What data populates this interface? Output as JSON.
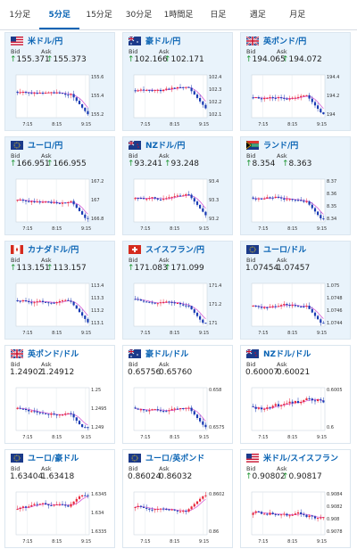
{
  "tabs": [
    "1分足",
    "5分足",
    "15分足",
    "30分足",
    "1時間足",
    "日足",
    "週足",
    "月足"
  ],
  "active_tab": 1,
  "labels": {
    "bid": "Bid",
    "ask": "Ask"
  },
  "cards": [
    {
      "title": "米ドル/円",
      "flag": "us",
      "bid": "155.371",
      "ask": "155.373",
      "up": true,
      "yticks": [
        "155.6",
        "155.4",
        "155.2"
      ],
      "xticks": [
        "7:15",
        "8:15",
        "9:15"
      ],
      "trend": "down"
    },
    {
      "title": "豪ドル/円",
      "flag": "au",
      "bid": "102.166",
      "ask": "102.171",
      "up": true,
      "yticks": [
        "102.4",
        "102.3",
        "102.2",
        "102.1"
      ],
      "xticks": [
        "7:15",
        "8:15",
        "9:15"
      ],
      "trend": "down"
    },
    {
      "title": "英ポンド/円",
      "flag": "gb",
      "bid": "194.065",
      "ask": "194.072",
      "up": true,
      "yticks": [
        "194.4",
        "194.2",
        "194"
      ],
      "xticks": [
        "7:15",
        "8:15",
        "9:15"
      ],
      "trend": "down"
    },
    {
      "title": "ユーロ/円",
      "flag": "eu",
      "bid": "166.951",
      "ask": "166.955",
      "up": true,
      "yticks": [
        "167.2",
        "167",
        "166.8"
      ],
      "xticks": [
        "7:15",
        "8:15",
        "9:15"
      ],
      "trend": "down"
    },
    {
      "title": "NZドル/円",
      "flag": "nz",
      "bid": "93.241",
      "ask": "93.248",
      "up": true,
      "yticks": [
        "93.4",
        "93.3",
        "93.2"
      ],
      "xticks": [
        "7:15",
        "8:15",
        "9:15"
      ],
      "trend": "down"
    },
    {
      "title": "ランド/円",
      "flag": "za",
      "bid": "8.354",
      "ask": "8.363",
      "up": true,
      "yticks": [
        "8.37",
        "8.36",
        "8.35",
        "8.34"
      ],
      "xticks": [
        "7:15",
        "8:15",
        "9:15"
      ],
      "trend": "down"
    },
    {
      "title": "カナダドル/円",
      "flag": "ca",
      "bid": "113.151",
      "ask": "113.157",
      "up": true,
      "yticks": [
        "113.4",
        "113.3",
        "113.2",
        "113.1"
      ],
      "xticks": [
        "7:15",
        "8:15",
        "9:15"
      ],
      "trend": "down"
    },
    {
      "title": "スイスフラン/円",
      "flag": "ch",
      "bid": "171.083",
      "ask": "171.099",
      "up": true,
      "yticks": [
        "171.4",
        "171.2",
        "171"
      ],
      "xticks": [
        "7:15",
        "8:15",
        "9:15"
      ],
      "trend": "down"
    },
    {
      "title": "ユーロ/ドル",
      "flag": "eu",
      "bid": "1.07454",
      "ask": "1.07457",
      "up": false,
      "yticks": [
        "1.075",
        "1.0748",
        "1.0746",
        "1.0744"
      ],
      "xticks": [
        "7:15",
        "8:15",
        "9:15"
      ],
      "trend": "down"
    },
    {
      "title": "英ポンド/ドル",
      "flag": "gb",
      "bid": "1.24902",
      "ask": "1.24912",
      "up": false,
      "yticks": [
        "1.25",
        "1.2495",
        "1.249"
      ],
      "xticks": [
        "7:15",
        "8:15",
        "9:15"
      ],
      "trend": "down"
    },
    {
      "title": "豪ドル/ドル",
      "flag": "au",
      "bid": "0.65756",
      "ask": "0.65760",
      "up": false,
      "yticks": [
        "0.658",
        "0.6575"
      ],
      "xticks": [
        "7:15",
        "8:15",
        "9:15"
      ],
      "trend": "down"
    },
    {
      "title": "NZドル/ドル",
      "flag": "nz",
      "bid": "0.60007",
      "ask": "0.60021",
      "up": false,
      "yticks": [
        "0.6005",
        "0.6"
      ],
      "xticks": [
        "7:15",
        "8:15",
        "9:15"
      ],
      "trend": "flat"
    },
    {
      "title": "ユーロ/豪ドル",
      "flag": "eu",
      "bid": "1.63404",
      "ask": "1.63418",
      "up": false,
      "yticks": [
        "1.6345",
        "1.634",
        "1.6335"
      ],
      "xticks": [
        "7:15",
        "8:15",
        "9:15"
      ],
      "trend": "up"
    },
    {
      "title": "ユーロ/英ポンド",
      "flag": "eu",
      "bid": "0.86024",
      "ask": "0.86032",
      "up": false,
      "yticks": [
        "0.8602",
        "0.86"
      ],
      "xticks": [
        "7:15",
        "8:15",
        "9:15"
      ],
      "trend": "up"
    },
    {
      "title": "米ドル/スイスフラン",
      "flag": "us",
      "bid": "0.90802",
      "ask": "0.90817",
      "up": true,
      "yticks": [
        "0.9084",
        "0.9082",
        "0.908",
        "0.9078"
      ],
      "xticks": [
        "7:15",
        "8:15",
        "9:15"
      ],
      "trend": "flat"
    }
  ],
  "colors": {
    "accent": "#0a64b4",
    "up_arrow": "#1e9632",
    "candle_up": "#e8283c",
    "candle_down": "#1a3cb4",
    "ma": "#d24bd2",
    "card_bg": "#e9f3fb"
  }
}
